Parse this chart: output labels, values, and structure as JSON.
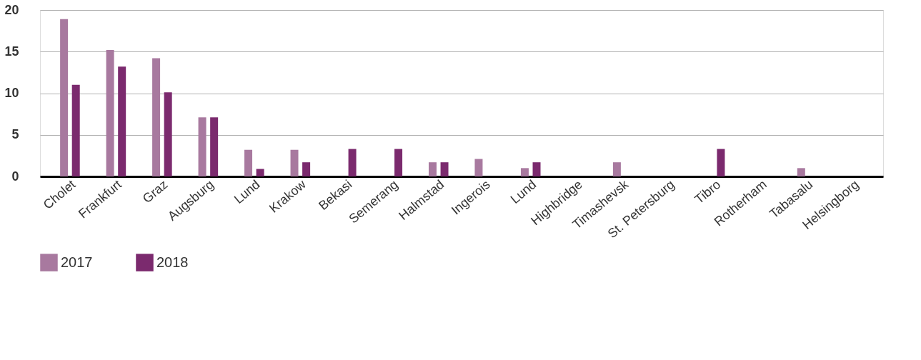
{
  "chart_data": {
    "type": "bar",
    "categories": [
      "Cholet",
      "Frankfurt",
      "Graz",
      "Augsburg",
      "Lund",
      "Krakow",
      "Bekasi",
      "Semerang",
      "Halmstad",
      "Ingerois",
      "Lund",
      "Highbridge",
      "Timashevsk",
      "St. Petersburg",
      "Tibro",
      "Rotherham",
      "Tabasalu",
      "Helsingborg"
    ],
    "series": [
      {
        "name": "2017",
        "color": "#a8799f",
        "values": [
          18.9,
          15.2,
          14.2,
          7.1,
          3.2,
          3.2,
          0,
          0,
          1.7,
          2.1,
          1.0,
          0,
          1.7,
          0,
          0,
          0,
          1.0,
          0
        ]
      },
      {
        "name": "2018",
        "color": "#7b2a6e",
        "values": [
          11.0,
          13.2,
          10.1,
          7.1,
          0.9,
          1.7,
          3.3,
          3.3,
          1.7,
          0,
          1.7,
          0,
          0,
          0,
          3.3,
          0,
          0,
          0
        ]
      }
    ],
    "ylim": [
      0,
      20
    ],
    "yticks": [
      0,
      5,
      10,
      15,
      20
    ],
    "grid": "y",
    "legend": "bottom left"
  }
}
